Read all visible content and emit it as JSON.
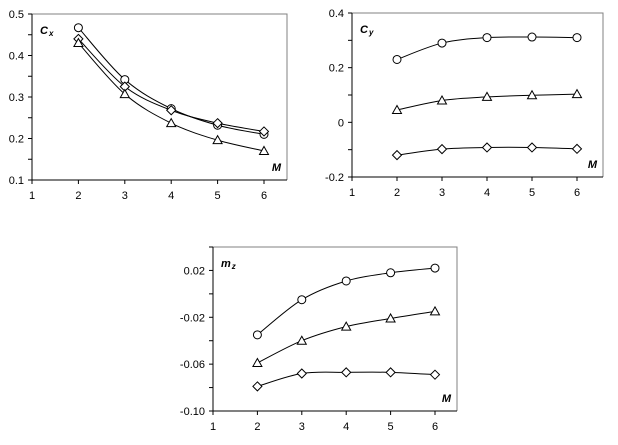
{
  "chart_data": [
    {
      "type": "line",
      "title": "",
      "ylabel": "C",
      "ylabel_sub": "x",
      "xlabel": "M",
      "xlim": [
        1,
        6.5
      ],
      "ylim": [
        0.1,
        0.5
      ],
      "xticks": [
        "1",
        "2",
        "3",
        "4",
        "5",
        "6"
      ],
      "yticks": [
        "0.1",
        "0.2",
        "0.3",
        "0.4",
        "0.5"
      ],
      "x": [
        2,
        3,
        4,
        5,
        6
      ],
      "series": [
        {
          "name": "circle",
          "marker": "circle",
          "values": [
            0.467,
            0.342,
            0.272,
            0.232,
            0.21
          ]
        },
        {
          "name": "diamond",
          "marker": "diamond",
          "values": [
            0.44,
            0.325,
            0.268,
            0.237,
            0.217
          ]
        },
        {
          "name": "triangle",
          "marker": "triangle",
          "values": [
            0.43,
            0.307,
            0.237,
            0.196,
            0.17
          ]
        }
      ]
    },
    {
      "type": "line",
      "title": "",
      "ylabel": "C",
      "ylabel_sub": "y",
      "xlabel": "M",
      "xlim": [
        1,
        6.5
      ],
      "ylim": [
        -0.2,
        0.4
      ],
      "xticks": [
        "1",
        "2",
        "3",
        "4",
        "5",
        "6"
      ],
      "yticks": [
        "-0.2",
        "0",
        "0.2",
        "0.4"
      ],
      "x": [
        2,
        3,
        4,
        5,
        6
      ],
      "series": [
        {
          "name": "circle",
          "marker": "circle",
          "values": [
            0.23,
            0.29,
            0.31,
            0.312,
            0.31
          ]
        },
        {
          "name": "triangle",
          "marker": "triangle",
          "values": [
            0.045,
            0.08,
            0.093,
            0.099,
            0.103
          ]
        },
        {
          "name": "diamond",
          "marker": "diamond",
          "values": [
            -0.12,
            -0.098,
            -0.092,
            -0.092,
            -0.097
          ]
        }
      ]
    },
    {
      "type": "line",
      "title": "",
      "ylabel": "m",
      "ylabel_sub": "z",
      "xlabel": "M",
      "xlim": [
        1,
        6.5
      ],
      "ylim": [
        -0.1,
        0.04
      ],
      "xticks": [
        "1",
        "2",
        "3",
        "4",
        "5",
        "6"
      ],
      "yticks": [
        "-0.10",
        "-0.06",
        "-0.02",
        "0.02"
      ],
      "x": [
        2,
        3,
        4,
        5,
        6
      ],
      "series": [
        {
          "name": "circle",
          "marker": "circle",
          "values": [
            -0.035,
            -0.005,
            0.011,
            0.018,
            0.022
          ]
        },
        {
          "name": "triangle",
          "marker": "triangle",
          "values": [
            -0.059,
            -0.04,
            -0.028,
            -0.021,
            -0.015
          ]
        },
        {
          "name": "diamond",
          "marker": "diamond",
          "values": [
            -0.079,
            -0.068,
            -0.067,
            -0.067,
            -0.069
          ]
        }
      ]
    }
  ]
}
